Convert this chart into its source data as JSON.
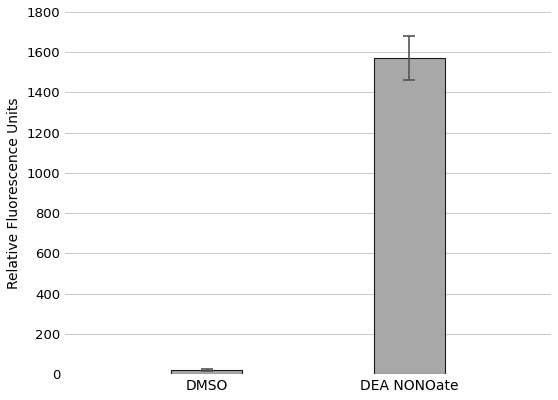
{
  "categories": [
    "DMSO",
    "DEA NONOate"
  ],
  "values": [
    20,
    1570
  ],
  "errors": [
    5,
    110
  ],
  "bar_color": "#a8a8a8",
  "bar_edgecolor": "#1a1a1a",
  "bar_width": 0.35,
  "ylabel": "Relative Fluorescence Units",
  "ylim": [
    0,
    1800
  ],
  "yticks": [
    0,
    200,
    400,
    600,
    800,
    1000,
    1200,
    1400,
    1600,
    1800
  ],
  "background_color": "#ffffff",
  "grid_color": "#c8c8c8",
  "ylabel_fontsize": 10,
  "tick_fontsize": 9.5,
  "xlabel_fontsize": 10,
  "error_capsize": 4,
  "error_linewidth": 1.2,
  "error_color": "#555555",
  "xlim": [
    -0.7,
    1.7
  ]
}
